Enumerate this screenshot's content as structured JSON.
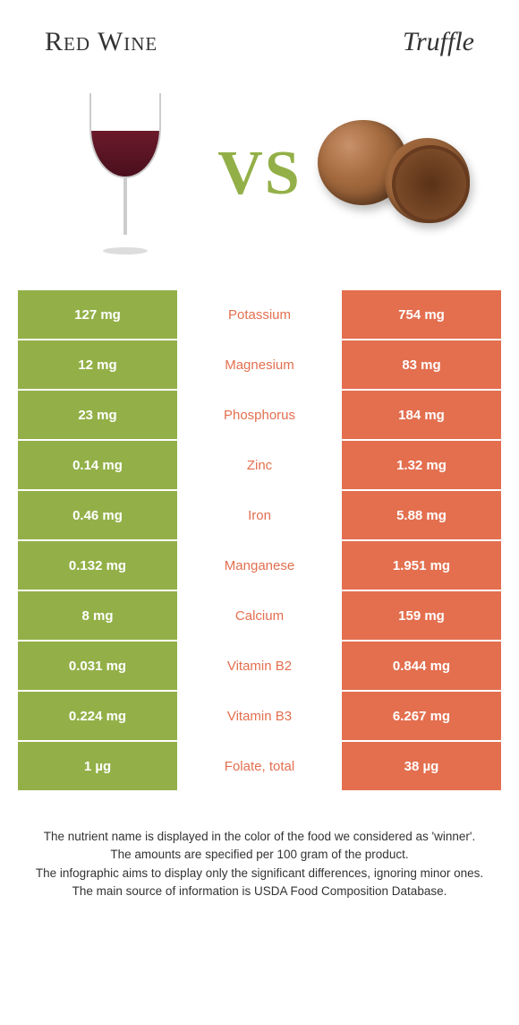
{
  "header": {
    "left_title": "Red Wine",
    "right_title": "Truffle",
    "vs": "VS"
  },
  "colors": {
    "left": "#93b048",
    "right": "#e36f4f",
    "mid_bg": "#ffffff",
    "value_text": "#ffffff"
  },
  "table": {
    "rows": [
      {
        "left": "127 mg",
        "label": "Potassium",
        "right": "754 mg",
        "winner": "right"
      },
      {
        "left": "12 mg",
        "label": "Magnesium",
        "right": "83 mg",
        "winner": "right"
      },
      {
        "left": "23 mg",
        "label": "Phosphorus",
        "right": "184 mg",
        "winner": "right"
      },
      {
        "left": "0.14 mg",
        "label": "Zinc",
        "right": "1.32 mg",
        "winner": "right"
      },
      {
        "left": "0.46 mg",
        "label": "Iron",
        "right": "5.88 mg",
        "winner": "right"
      },
      {
        "left": "0.132 mg",
        "label": "Manganese",
        "right": "1.951 mg",
        "winner": "right"
      },
      {
        "left": "8 mg",
        "label": "Calcium",
        "right": "159 mg",
        "winner": "right"
      },
      {
        "left": "0.031 mg",
        "label": "Vitamin B2",
        "right": "0.844 mg",
        "winner": "right"
      },
      {
        "left": "0.224 mg",
        "label": "Vitamin B3",
        "right": "6.267 mg",
        "winner": "right"
      },
      {
        "left": "1 µg",
        "label": "Folate, total",
        "right": "38 µg",
        "winner": "right"
      }
    ]
  },
  "footer": {
    "line1": "The nutrient name is displayed in the color of the food we considered as 'winner'.",
    "line2": "The amounts are specified per 100 gram of the product.",
    "line3": "The infographic aims to display only the significant differences, ignoring minor ones.",
    "line4": "The main source of information is USDA Food Composition Database."
  }
}
